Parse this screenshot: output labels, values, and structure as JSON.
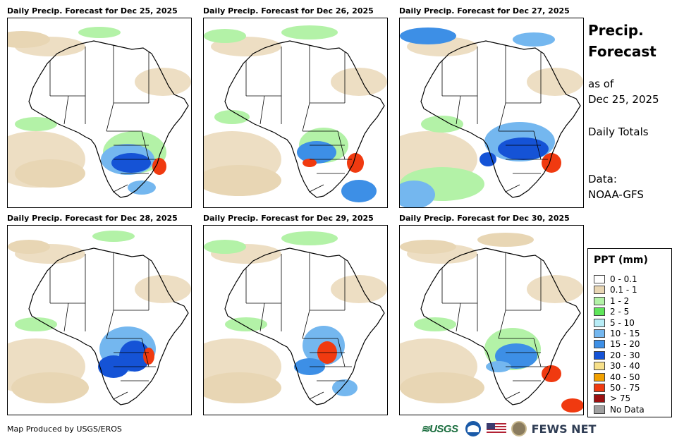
{
  "panels": [
    {
      "title": "Daily Precip. Forecast for Dec 25, 2025"
    },
    {
      "title": "Daily Precip. Forecast for Dec 26, 2025"
    },
    {
      "title": "Daily Precip. Forecast for Dec 27, 2025"
    },
    {
      "title": "Daily Precip. Forecast for Dec 28, 2025"
    },
    {
      "title": "Daily Precip. Forecast for Dec 29, 2025"
    },
    {
      "title": "Daily Precip. Forecast for Dec 30, 2025"
    }
  ],
  "side": {
    "title_line1": "Precip.",
    "title_line2": "Forecast",
    "asof_line1": "as of",
    "asof_line2": "Dec 25, 2025",
    "totals": "Daily Totals",
    "data_line1": "Data:",
    "data_line2": "NOAA-GFS"
  },
  "legend": {
    "title": "PPT (mm)",
    "items": [
      {
        "label": "0 - 0.1",
        "color": "#ffffff"
      },
      {
        "label": "0.1 - 1",
        "color": "#e8d6b4"
      },
      {
        "label": "1 - 2",
        "color": "#b3f2a7"
      },
      {
        "label": "2 - 5",
        "color": "#5fe55a"
      },
      {
        "label": "5 - 10",
        "color": "#b7ecf6"
      },
      {
        "label": "10 - 15",
        "color": "#74b7ef"
      },
      {
        "label": "15 - 20",
        "color": "#3d8fe6"
      },
      {
        "label": "20 - 30",
        "color": "#1553d6"
      },
      {
        "label": "30 - 40",
        "color": "#f7e08a"
      },
      {
        "label": "40 - 50",
        "color": "#f1a000"
      },
      {
        "label": "50 - 75",
        "color": "#f03a10"
      },
      {
        "label": "> 75",
        "color": "#9c1010"
      },
      {
        "label": "No Data",
        "color": "#a0a0a0"
      }
    ]
  },
  "footer": {
    "produced_by": "Map Produced by USGS/EROS"
  },
  "logos": {
    "usgs": "≋USGS",
    "fews": "FEWS NET"
  }
}
